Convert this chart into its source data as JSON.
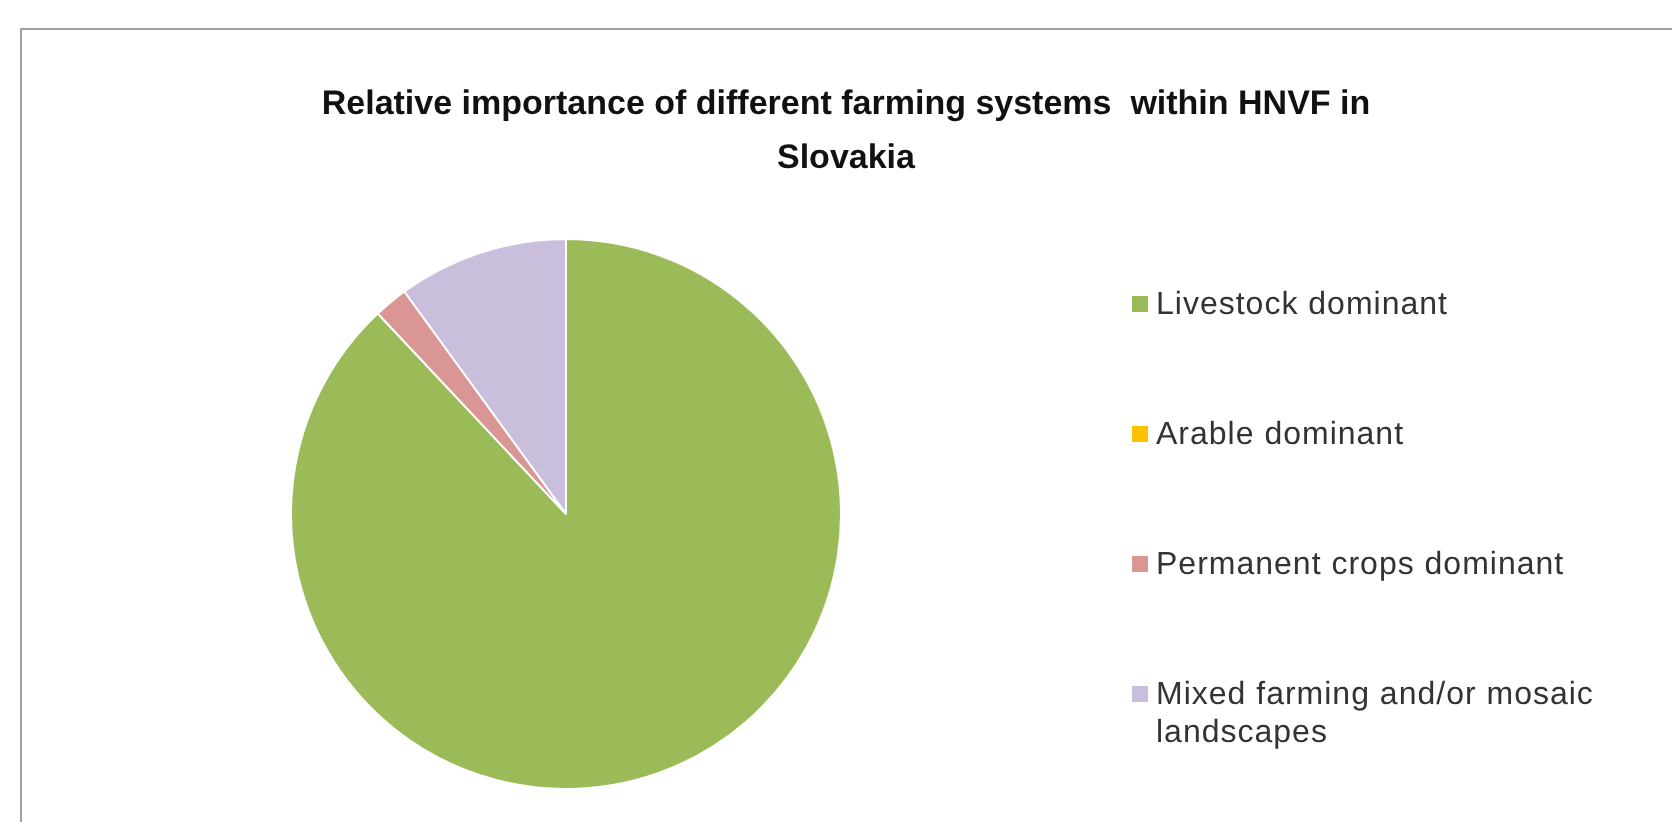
{
  "chart_data": {
    "type": "pie",
    "title": "Relative importance of different farming systems  within HNVF in Slovakia",
    "categories": [
      "Livestock dominant",
      "Arable dominant",
      "Permanent crops dominant",
      "Mixed farming and/or mosaic landscapes"
    ],
    "values": [
      88,
      0,
      2,
      10
    ],
    "colors": [
      "#9bbb59",
      "#ffc000",
      "#d99694",
      "#c9bfdc"
    ],
    "legend": "right"
  }
}
